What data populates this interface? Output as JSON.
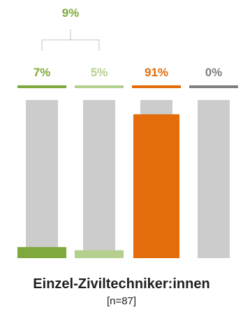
{
  "chart_data": {
    "type": "bar",
    "categories": [
      "",
      "",
      "",
      ""
    ],
    "values": [
      7,
      5,
      91,
      0
    ],
    "labels": [
      "7%",
      "5%",
      "91%",
      "0%"
    ],
    "colors": [
      "#7fa93c",
      "#b5d08e",
      "#e46c0a",
      "#7f7f7f"
    ],
    "background_color": "#cccccc",
    "ylim": [
      0,
      100
    ],
    "group_label": "9%",
    "group_color": "#7fa93c",
    "title": "Einzel-Ziviltechniker:innen",
    "subtitle": "[n=87]"
  }
}
